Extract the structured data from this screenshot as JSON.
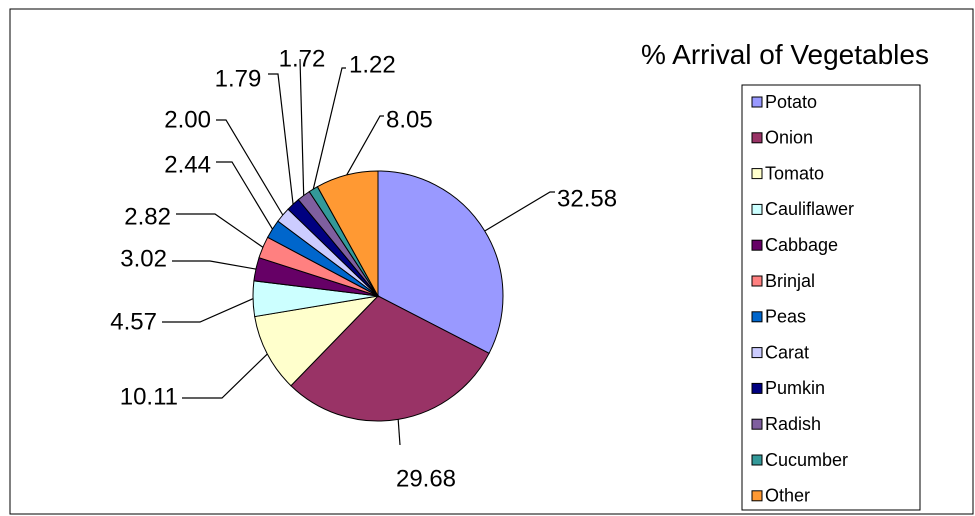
{
  "chart_data": {
    "type": "pie",
    "title": "% Arrival of Vegetables",
    "legend_position": "right",
    "categories": [
      "Potato",
      "Onion",
      "Tomato",
      "Cauliflawer",
      "Cabbage",
      "Brinjal",
      "Peas",
      "Carat",
      "Pumkin",
      "Radish",
      "Cucumber",
      "Other"
    ],
    "values": [
      32.58,
      29.68,
      10.11,
      4.57,
      3.02,
      2.82,
      2.44,
      2.0,
      1.79,
      1.72,
      1.22,
      8.05
    ],
    "data_labels": [
      "32.58",
      "29.68",
      "10.11",
      "4.57",
      "3.02",
      "2.82",
      "2.44",
      "2.00",
      "1.79",
      "1.72",
      "1.22",
      "8.05"
    ],
    "colors": [
      "#9999FF",
      "#993366",
      "#FFFFCC",
      "#CCFFFF",
      "#660066",
      "#FF8080",
      "#0066CC",
      "#CCCCFF",
      "#000080",
      "#7F5F9F",
      "#339999",
      "#FF9933"
    ]
  }
}
